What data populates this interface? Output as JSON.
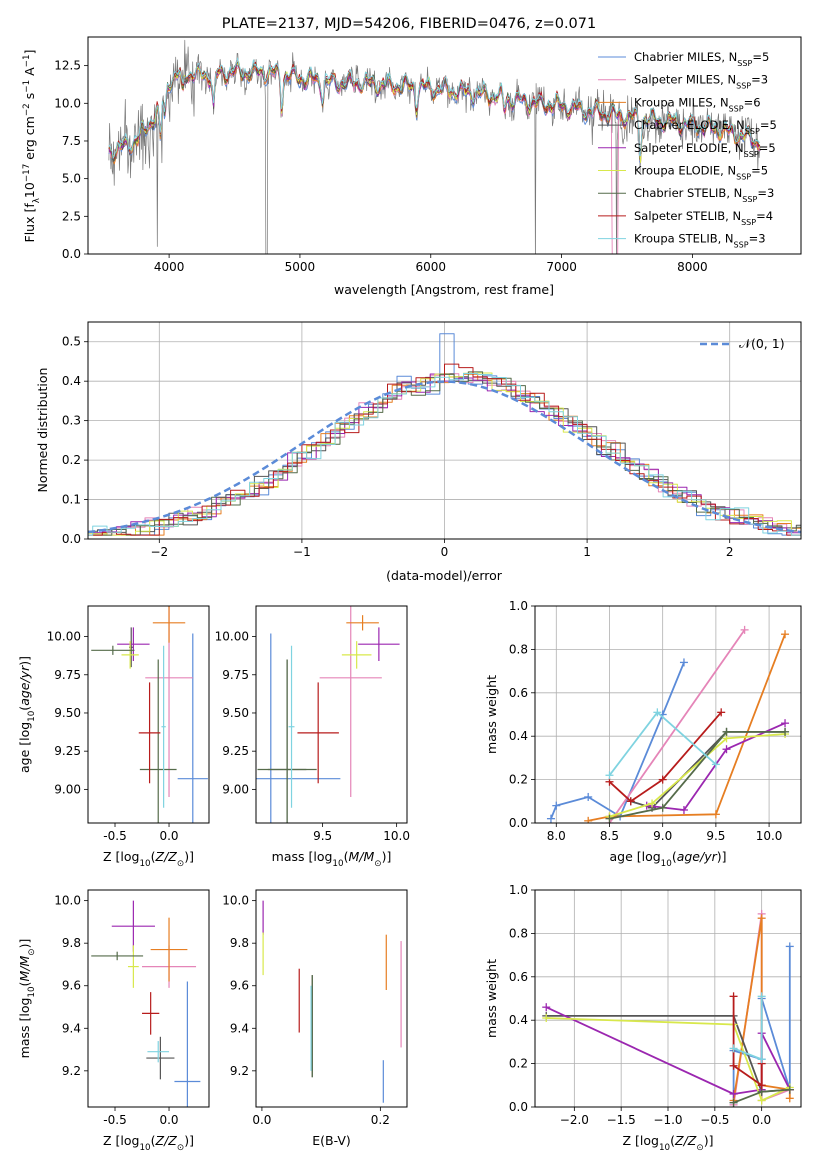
{
  "chart_data": [
    {
      "type": "line",
      "title": "PLATE=2137, MJD=54206, FIBERID=0476, z=0.071",
      "xlabel": "wavelength [Angstrom, rest frame]",
      "ylabel": "Flux [f_λ10^-17 erg cm^-2 s^-1 A^-1]",
      "xlim": [
        3380,
        8830
      ],
      "ylim": [
        0,
        14.4
      ],
      "xticks": [
        4000,
        5000,
        6000,
        7000,
        8000
      ],
      "yticks": [
        0.0,
        2.5,
        5.0,
        7.5,
        10.0,
        12.5
      ],
      "legend_position": "top-right",
      "series": [
        {
          "name": "Chabrier MILES, N_SSP=5",
          "color": "#5b8bd8"
        },
        {
          "name": "Salpeter MILES, N_SSP=3",
          "color": "#e585b8"
        },
        {
          "name": "Kroupa MILES, N_SSP=6",
          "color": "#e67e22"
        },
        {
          "name": "Chabrier ELODIE, N_SSP=5",
          "color": "#555555"
        },
        {
          "name": "Salpeter ELODIE, N_SSP=5",
          "color": "#9b27b0"
        },
        {
          "name": "Kroupa ELODIE, N_SSP=5",
          "color": "#d8e84b"
        },
        {
          "name": "Chabrier STELIB, N_SSP=3",
          "color": "#556b4a"
        },
        {
          "name": "Salpeter STELIB, N_SSP=4",
          "color": "#b71c1c"
        },
        {
          "name": "Kroupa STELIB, N_SSP=3",
          "color": "#7fd3e0"
        }
      ],
      "continuum_wavelength": [
        3550,
        3700,
        3800,
        3900,
        4000,
        4100,
        4300,
        4500,
        4800,
        5000,
        5200,
        5500,
        6000,
        6500,
        6800,
        7000,
        7400,
        7800,
        8200,
        8500
      ],
      "continuum_flux": [
        6.8,
        7.2,
        8.0,
        9.3,
        11.5,
        12.0,
        11.8,
        12.1,
        12.0,
        11.7,
        11.4,
        11.3,
        11.0,
        10.5,
        10.0,
        9.8,
        9.2,
        8.8,
        8.3,
        7.5
      ]
    },
    {
      "type": "line",
      "xlabel": "(data-model)/error",
      "ylabel": "Normed distribution",
      "xlim": [
        -2.5,
        2.5
      ],
      "ylim": [
        0,
        0.55
      ],
      "xticks": [
        -2,
        -1,
        0,
        1,
        2
      ],
      "yticks": [
        0.0,
        0.1,
        0.2,
        0.3,
        0.4,
        0.5
      ],
      "legend_position": "top-right",
      "reference_label": "𝒩(0, 1)",
      "reference_color": "#5b8bd8"
    },
    {
      "type": "scatter",
      "xlabel": "Z [log10(Z/Z⊙)]",
      "ylabel": "age  [log10(age/yr)]",
      "xlim": [
        -0.75,
        0.37
      ],
      "ylim": [
        8.78,
        10.2
      ],
      "xticks": [
        "-0.5",
        "0.0"
      ],
      "yticks": [
        "9.00",
        "9.25",
        "9.50",
        "9.75",
        "10.00"
      ],
      "points": [
        {
          "x": 0.22,
          "y": 9.07,
          "xerr": 0.14,
          "yerr": 0.95,
          "color": "#5b8bd8"
        },
        {
          "x": 0.0,
          "y": 9.73,
          "xerr": 0.22,
          "yerr": 0.78,
          "color": "#e585b8"
        },
        {
          "x": 0.0,
          "y": 10.09,
          "xerr": 0.15,
          "yerr": 0.13,
          "color": "#e67e22"
        },
        {
          "x": -0.35,
          "y": 9.93,
          "xerr": 0.02,
          "yerr": 0.13,
          "color": "#555555"
        },
        {
          "x": -0.33,
          "y": 9.95,
          "xerr": 0.15,
          "yerr": 0.11,
          "color": "#9b27b0"
        },
        {
          "x": -0.36,
          "y": 9.88,
          "xerr": 0.08,
          "yerr": 0.09,
          "color": "#d8e84b"
        },
        {
          "x": -0.1,
          "y": 9.13,
          "xerr": 0.17,
          "yerr": 0.72,
          "color": "#556b4a"
        },
        {
          "x": -0.18,
          "y": 9.37,
          "xerr": 0.1,
          "yerr": 0.33,
          "color": "#b71c1c"
        },
        {
          "x": -0.05,
          "y": 9.41,
          "xerr": 0.02,
          "yerr": 0.53,
          "color": "#7fd3e0"
        },
        {
          "x": -0.52,
          "y": 9.91,
          "xerr": 0.2,
          "yerr": 0.03,
          "color": "#556b4a"
        }
      ]
    },
    {
      "type": "scatter",
      "xlabel": "mass [log10(M/M⊙)]",
      "xlim": [
        9.05,
        10.07
      ],
      "ylim": [
        8.78,
        10.2
      ],
      "xticks": [
        "9.5",
        "10.0"
      ],
      "yticks": [
        "9.00",
        "9.25",
        "9.50",
        "9.75",
        "10.00"
      ],
      "points": [
        {
          "x": 9.15,
          "y": 9.07,
          "xerr": 0.47,
          "yerr": 0.95,
          "color": "#5b8bd8"
        },
        {
          "x": 9.69,
          "y": 9.73,
          "xerr": 0.21,
          "yerr": 0.78,
          "color": "#e585b8"
        },
        {
          "x": 9.77,
          "y": 10.09,
          "xerr": 0.11,
          "yerr": 0.05,
          "color": "#e67e22"
        },
        {
          "x": 9.26,
          "y": 9.13,
          "xerr": 0.13,
          "yerr": 0.72,
          "color": "#555555"
        },
        {
          "x": 9.88,
          "y": 9.95,
          "xerr": 0.14,
          "yerr": 0.11,
          "color": "#9b27b0"
        },
        {
          "x": 9.73,
          "y": 9.88,
          "xerr": 0.1,
          "yerr": 0.09,
          "color": "#d8e84b"
        },
        {
          "x": 9.26,
          "y": 9.13,
          "xerr": 0.2,
          "yerr": 0.72,
          "color": "#556b4a"
        },
        {
          "x": 9.47,
          "y": 9.37,
          "xerr": 0.14,
          "yerr": 0.33,
          "color": "#b71c1c"
        },
        {
          "x": 9.29,
          "y": 9.41,
          "xerr": 0.02,
          "yerr": 0.53,
          "color": "#7fd3e0"
        }
      ]
    },
    {
      "type": "line",
      "xlabel": "age  [log10(age/yr)]",
      "ylabel": "mass weight",
      "xlim": [
        7.8,
        10.3
      ],
      "ylim": [
        0,
        1.0
      ],
      "xticks": [
        "8.0",
        "8.5",
        "9.0",
        "9.5",
        "10.0"
      ],
      "yticks": [
        "0.0",
        "0.2",
        "0.4",
        "0.6",
        "0.8",
        "1.0"
      ],
      "series": [
        {
          "color": "#5b8bd8",
          "x": [
            7.95,
            8.0,
            8.3,
            8.6,
            9.0,
            9.2
          ],
          "y": [
            0.02,
            0.08,
            0.12,
            0.03,
            0.5,
            0.74
          ]
        },
        {
          "color": "#e585b8",
          "x": [
            8.5,
            9.77
          ],
          "y": [
            0.0,
            0.89
          ]
        },
        {
          "color": "#e67e22",
          "x": [
            8.3,
            8.5,
            9.5,
            10.15
          ],
          "y": [
            0.01,
            0.03,
            0.04,
            0.87
          ]
        },
        {
          "color": "#555555",
          "x": [
            8.7,
            8.9,
            9.6,
            10.15
          ],
          "y": [
            0.1,
            0.07,
            0.42,
            0.42
          ]
        },
        {
          "color": "#9b27b0",
          "x": [
            8.85,
            9.2,
            9.6,
            10.15
          ],
          "y": [
            0.08,
            0.06,
            0.34,
            0.46
          ]
        },
        {
          "color": "#d8e84b",
          "x": [
            8.5,
            8.9,
            9.6,
            10.15
          ],
          "y": [
            0.03,
            0.09,
            0.39,
            0.41
          ]
        },
        {
          "color": "#556b4a",
          "x": [
            8.5,
            9.0,
            9.6,
            10.15
          ],
          "y": [
            0.02,
            0.07,
            0.42,
            0.42
          ]
        },
        {
          "color": "#b71c1c",
          "x": [
            8.5,
            8.7,
            9.0,
            9.55
          ],
          "y": [
            0.19,
            0.1,
            0.2,
            0.51
          ]
        },
        {
          "color": "#7fd3e0",
          "x": [
            8.5,
            8.95,
            9.5
          ],
          "y": [
            0.22,
            0.51,
            0.27
          ]
        }
      ]
    },
    {
      "type": "scatter",
      "xlabel": "Z [log10(Z/Z⊙)]",
      "ylabel": "mass [log10(M/M⊙)]",
      "xlim": [
        -0.75,
        0.37
      ],
      "ylim": [
        9.03,
        10.05
      ],
      "xticks": [
        "-0.5",
        "0.0"
      ],
      "yticks": [
        "9.2",
        "9.4",
        "9.6",
        "9.8",
        "10.0"
      ],
      "points": [
        {
          "x": 0.17,
          "y": 9.15,
          "xerr": 0.12,
          "yerr": 0.47,
          "color": "#5b8bd8"
        },
        {
          "x": 0.0,
          "y": 9.69,
          "xerr": 0.25,
          "yerr": 0.1,
          "color": "#e585b8"
        },
        {
          "x": 0.0,
          "y": 9.77,
          "xerr": 0.17,
          "yerr": 0.15,
          "color": "#e67e22"
        },
        {
          "x": -0.08,
          "y": 9.26,
          "xerr": 0.13,
          "yerr": 0.1,
          "color": "#555555"
        },
        {
          "x": -0.33,
          "y": 9.88,
          "xerr": 0.2,
          "yerr": 0.12,
          "color": "#9b27b0"
        },
        {
          "x": -0.33,
          "y": 9.69,
          "xerr": 0.05,
          "yerr": 0.1,
          "color": "#d8e84b"
        },
        {
          "x": -0.48,
          "y": 9.74,
          "xerr": 0.24,
          "yerr": 0.02,
          "color": "#556b4a"
        },
        {
          "x": -0.17,
          "y": 9.47,
          "xerr": 0.08,
          "yerr": 0.1,
          "color": "#b71c1c"
        },
        {
          "x": -0.1,
          "y": 9.29,
          "xerr": 0.1,
          "yerr": 0.05,
          "color": "#7fd3e0"
        }
      ]
    },
    {
      "type": "scatter",
      "xlabel": "E(B-V)",
      "xlim": [
        -0.01,
        0.245
      ],
      "ylim": [
        9.03,
        10.05
      ],
      "xticks": [
        "0.0",
        "0.2"
      ],
      "yticks": [
        "9.2",
        "9.4",
        "9.6",
        "9.8",
        "10.0"
      ],
      "points": [
        {
          "x": 0.205,
          "y": 9.15,
          "yerr": 0.1,
          "color": "#5b8bd8"
        },
        {
          "x": 0.235,
          "y": 9.56,
          "yerr": 0.25,
          "color": "#e585b8"
        },
        {
          "x": 0.21,
          "y": 9.71,
          "yerr": 0.13,
          "color": "#e67e22"
        },
        {
          "x": 0.085,
          "y": 9.41,
          "yerr": 0.24,
          "color": "#555555"
        },
        {
          "x": 0.002,
          "y": 9.92,
          "yerr": 0.08,
          "color": "#9b27b0"
        },
        {
          "x": 0.002,
          "y": 9.75,
          "yerr": 0.1,
          "color": "#d8e84b"
        },
        {
          "x": 0.085,
          "y": 9.41,
          "yerr": 0.24,
          "color": "#556b4a"
        },
        {
          "x": 0.063,
          "y": 9.53,
          "yerr": 0.15,
          "color": "#b71c1c"
        },
        {
          "x": 0.083,
          "y": 9.4,
          "yerr": 0.2,
          "color": "#7fd3e0"
        }
      ]
    },
    {
      "type": "line",
      "xlabel": "Z [log10(Z/Z⊙)]",
      "ylabel": "mass weight",
      "xlim": [
        -2.42,
        0.42
      ],
      "ylim": [
        0,
        1.0
      ],
      "xticks": [
        "−2.0",
        "−1.5",
        "−1.0",
        "−0.5",
        "0.0"
      ],
      "yticks": [
        "0.0",
        "0.2",
        "0.4",
        "0.6",
        "0.8",
        "1.0"
      ],
      "series": [
        {
          "color": "#5b8bd8",
          "x": [
            -0.3,
            -0.3,
            0.0,
            0.0,
            0.3,
            0.3
          ],
          "y": [
            0.02,
            0.26,
            0.22,
            0.5,
            0.08,
            0.74
          ]
        },
        {
          "color": "#e585b8",
          "x": [
            -0.3,
            0.0,
            0.0,
            0.3
          ],
          "y": [
            0.01,
            0.89,
            0.03,
            0.08
          ]
        },
        {
          "color": "#e67e22",
          "x": [
            -0.3,
            0.0,
            0.0,
            0.3,
            0.3
          ],
          "y": [
            0.03,
            0.87,
            0.1,
            0.08,
            0.04
          ]
        },
        {
          "color": "#555555",
          "x": [
            -2.3,
            -0.3,
            0.0,
            0.3
          ],
          "y": [
            0.42,
            0.42,
            0.07,
            0.08
          ]
        },
        {
          "color": "#9b27b0",
          "x": [
            -2.3,
            -0.3,
            0.0,
            0.0,
            0.3
          ],
          "y": [
            0.46,
            0.06,
            0.08,
            0.34,
            0.08
          ]
        },
        {
          "color": "#d8e84b",
          "x": [
            -2.3,
            -0.3,
            0.0,
            0.3
          ],
          "y": [
            0.41,
            0.38,
            0.03,
            0.09
          ]
        },
        {
          "color": "#556b4a",
          "x": [
            -0.3,
            0.0,
            0.3
          ],
          "y": [
            0.02,
            0.07,
            0.08
          ]
        },
        {
          "color": "#b71c1c",
          "x": [
            -0.3,
            -0.3,
            0.0,
            0.0
          ],
          "y": [
            0.51,
            0.19,
            0.1,
            0.2
          ]
        },
        {
          "color": "#7fd3e0",
          "x": [
            -0.3,
            0.0,
            0.0
          ],
          "y": [
            0.27,
            0.22,
            0.51
          ]
        }
      ]
    }
  ]
}
